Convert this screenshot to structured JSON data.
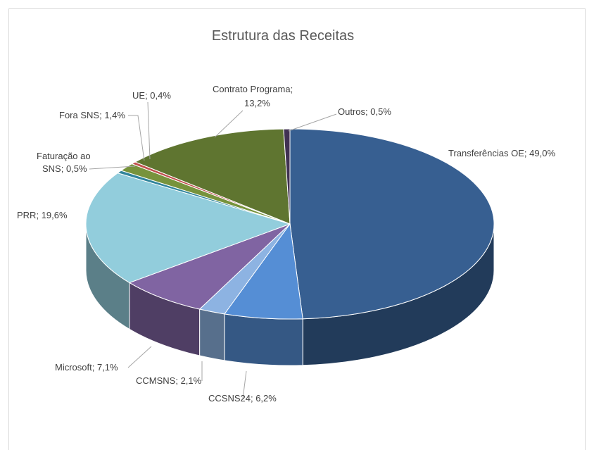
{
  "chart_data": {
    "type": "pie3d",
    "title": "Estrutura das Receitas",
    "categories": [
      "Transferências OE",
      "CCSNS24",
      "CCMSNS",
      "Microsoft",
      "PRR",
      "Faturação ao SNS",
      "Fora SNS",
      "UE",
      "Contrato Programa",
      "Outros"
    ],
    "values": [
      49.0,
      6.2,
      2.1,
      7.1,
      19.6,
      0.5,
      1.4,
      0.4,
      13.2,
      0.5
    ],
    "value_labels": [
      "49,0%",
      "6,2%",
      "2,1%",
      "7,1%",
      "19,6%",
      "0,5%",
      "1,4%",
      "0,4%",
      "13,2%",
      "0,5%"
    ],
    "label_separator": "; ",
    "colors": [
      "#375f91",
      "#558ed5",
      "#8db3e2",
      "#8064a2",
      "#92cddc",
      "#31859c",
      "#77933c",
      "#c0504d",
      "#5f7530",
      "#403152"
    ]
  }
}
